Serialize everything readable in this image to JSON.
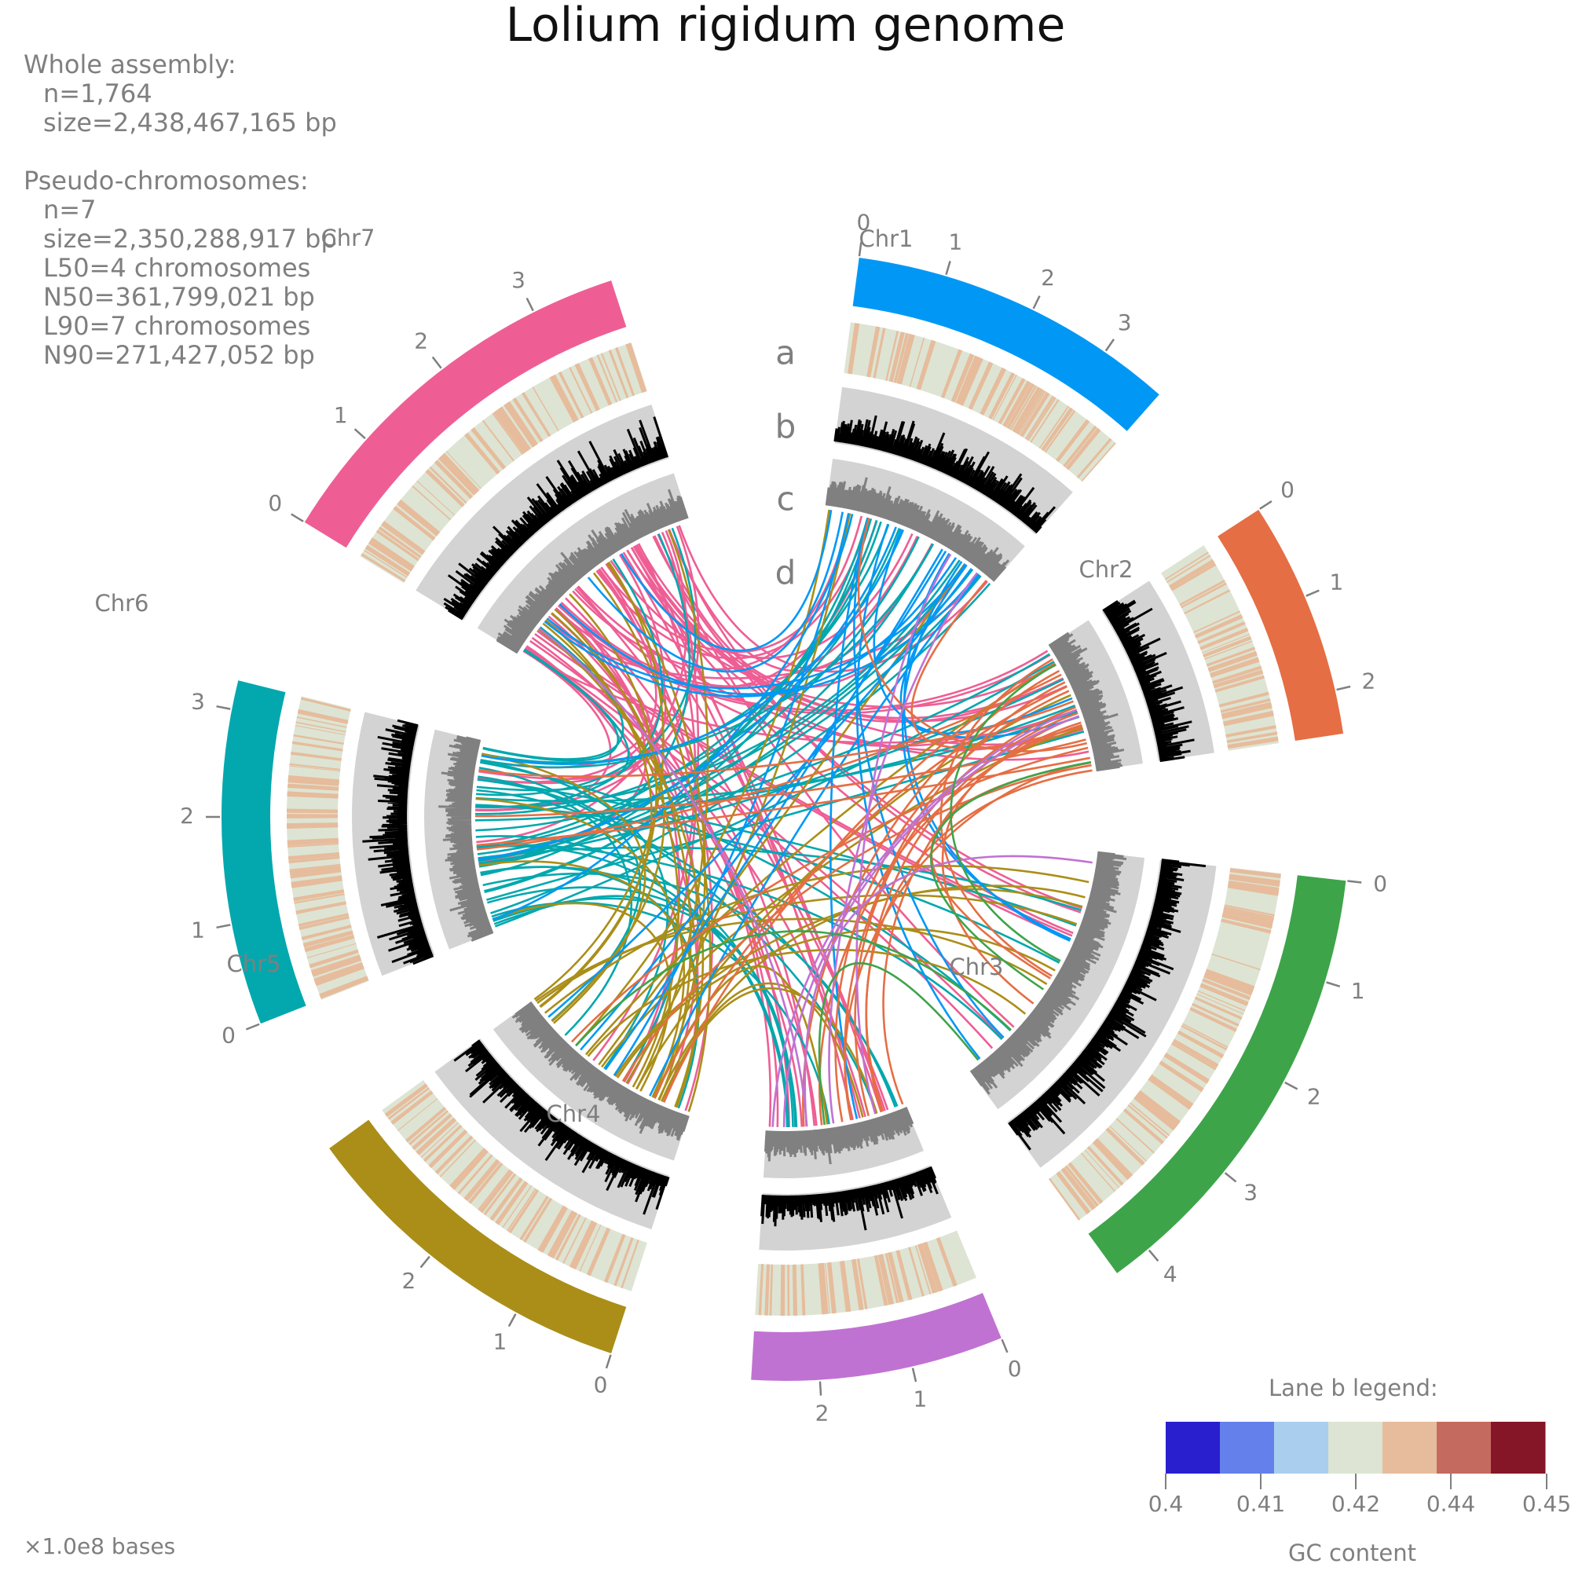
{
  "title": "Lolium rigidum genome",
  "stats": {
    "whole_label": "Whole assembly:",
    "whole_n": "n=1,764",
    "whole_size": "size=2,438,467,165 bp",
    "pseudo_label": "Pseudo-chromosomes:",
    "pseudo_n": "n=7",
    "pseudo_size": "size=2,350,288,917 bp",
    "l50": "L50=4 chromosomes",
    "n50": "N50=361,799,021 bp",
    "l90": "L90=7 chromosomes",
    "n90": "N90=271,427,052 bp"
  },
  "lanes": [
    "a",
    "b",
    "c",
    "d"
  ],
  "unit_note": "×1.0e8 bases",
  "chromosomes": [
    {
      "name": "Chr1",
      "color": "#0198f5",
      "ticks": [
        "0",
        "1",
        "2",
        "3"
      ]
    },
    {
      "name": "Chr2",
      "color": "#e56e44",
      "ticks": [
        "0",
        "1",
        "2"
      ]
    },
    {
      "name": "Chr3",
      "color": "#3ea44a",
      "ticks": [
        "0",
        "1",
        "2",
        "3",
        "4"
      ]
    },
    {
      "name": "Chr4",
      "color": "#c072d2",
      "ticks": [
        "0",
        "1",
        "2"
      ]
    },
    {
      "name": "Chr5",
      "color": "#aa8e18",
      "ticks": [
        "0",
        "1",
        "2"
      ]
    },
    {
      "name": "Chr6",
      "color": "#02a8ae",
      "ticks": [
        "0",
        "1",
        "2",
        "3"
      ]
    },
    {
      "name": "Chr7",
      "color": "#ee5e94",
      "ticks": [
        "0",
        "1",
        "2",
        "3"
      ]
    }
  ],
  "legend": {
    "title": "Lane b legend:",
    "axis_label": "GC content",
    "colors": [
      "#2a1fce",
      "#6480ea",
      "#aacfee",
      "#dde4d3",
      "#e6bc9c",
      "#c56a5e",
      "#851628"
    ],
    "tick_labels": [
      "0.4",
      "0.41",
      "0.42",
      "0.44",
      "0.45"
    ]
  }
}
